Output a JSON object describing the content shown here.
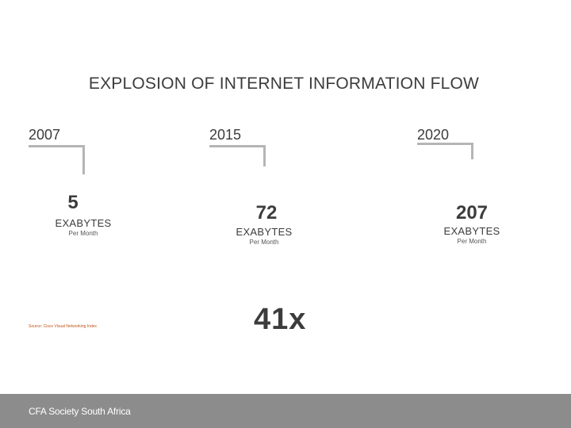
{
  "slide": {
    "title": "EXPLOSION OF INTERNET INFORMATION FLOW",
    "columns": [
      {
        "year": "2007",
        "value": "5",
        "unit": "EXABYTES",
        "period": "Per Month"
      },
      {
        "year": "2015",
        "value": "72",
        "unit": "EXABYTES",
        "period": "Per Month"
      },
      {
        "year": "2020",
        "value": "207",
        "unit": "EXABYTES",
        "period": "Per Month"
      }
    ],
    "multiplier": "41x",
    "source": "Source: Cisco Visual Networking Index"
  },
  "footer": {
    "label": "CFA Society South Africa"
  },
  "colors": {
    "footer_bg": "#8c8c8c",
    "bracket": "#b5b5b5",
    "source_text": "#c0561a"
  }
}
